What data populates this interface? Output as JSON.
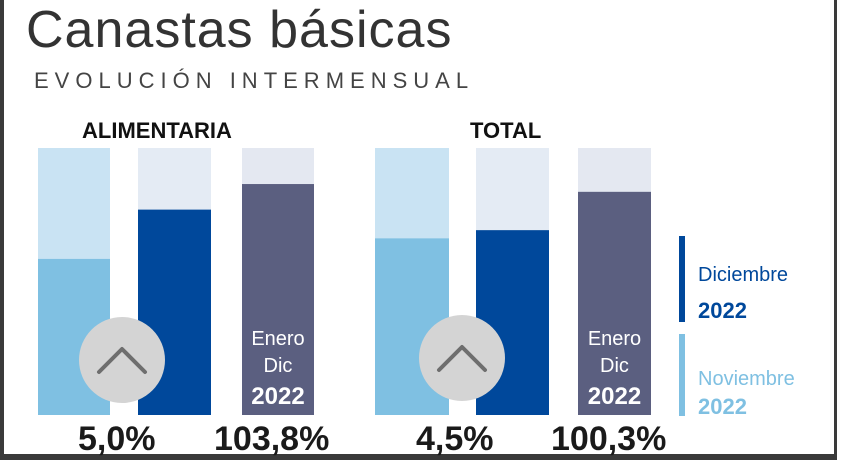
{
  "title": "Canastas básicas",
  "subtitle": "EVOLUCIÓN INTERMENSUAL",
  "colors": {
    "nov": "#7fc0e2",
    "dic": "#00489b",
    "annual": "#5b5f80",
    "track_light": "#c9e3f3",
    "track_pale": "#e4ebf4",
    "track_annual": "#e4e8f1",
    "chevron_circle": "#d4d4d4",
    "chevron_stroke": "#6e6e6e"
  },
  "icons": {
    "growth": "chevron-up-icon"
  },
  "legend": [
    {
      "label": "Diciembre",
      "year": "2022",
      "color": "#00489b"
    },
    {
      "label": "Noviembre",
      "year": "2022",
      "color": "#7fc0e2"
    }
  ],
  "chart_data": [
    {
      "type": "bar",
      "title": "ALIMENTARIA",
      "categories": [
        "Noviembre 2022",
        "Diciembre 2022"
      ],
      "values": [
        3.8,
        5.0
      ],
      "value_label": "5,0%",
      "annual": {
        "line1": "Enero",
        "line2": "Dic",
        "year": "2022",
        "value": 103.8,
        "value_label": "103,8%"
      }
    },
    {
      "type": "bar",
      "title": "TOTAL",
      "categories": [
        "Noviembre 2022",
        "Diciembre 2022"
      ],
      "values": [
        4.3,
        4.5
      ],
      "value_label": "4,5%",
      "annual": {
        "line1": "Enero",
        "line2": "Dic",
        "year": "2022",
        "value": 100.3,
        "value_label": "100,3%"
      }
    }
  ]
}
